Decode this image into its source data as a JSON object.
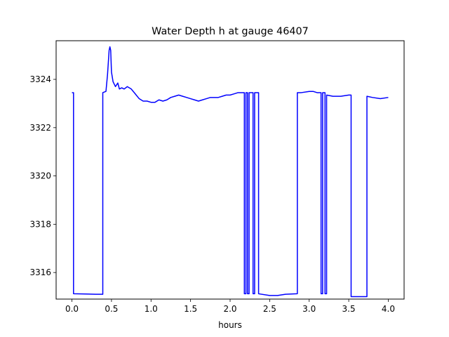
{
  "chart_data": {
    "type": "line",
    "title": "Water Depth h at gauge 46407",
    "xlabel": "hours",
    "ylabel": "",
    "xlim": [
      -0.2,
      4.2
    ],
    "ylim": [
      3314.9,
      3325.6
    ],
    "xticks": [
      0.0,
      0.5,
      1.0,
      1.5,
      2.0,
      2.5,
      3.0,
      3.5,
      4.0
    ],
    "xtick_labels": [
      "0.0",
      "0.5",
      "1.0",
      "1.5",
      "2.0",
      "2.5",
      "3.0",
      "3.5",
      "4.0"
    ],
    "yticks": [
      3316,
      3318,
      3320,
      3322,
      3324
    ],
    "ytick_labels": [
      "3316",
      "3318",
      "3320",
      "3322",
      "3324"
    ],
    "grid": false,
    "series": [
      {
        "color": "#0000ff",
        "x": [
          0.0,
          0.02,
          0.02,
          0.3,
          0.39,
          0.39,
          0.43,
          0.45,
          0.47,
          0.48,
          0.49,
          0.5,
          0.52,
          0.55,
          0.58,
          0.6,
          0.63,
          0.66,
          0.7,
          0.75,
          0.8,
          0.85,
          0.9,
          0.95,
          1.0,
          1.05,
          1.1,
          1.15,
          1.2,
          1.25,
          1.3,
          1.35,
          1.4,
          1.45,
          1.5,
          1.55,
          1.6,
          1.65,
          1.7,
          1.75,
          1.8,
          1.85,
          1.9,
          1.95,
          2.0,
          2.05,
          2.1,
          2.15,
          2.18,
          2.18,
          2.2,
          2.2,
          2.22,
          2.22,
          2.24,
          2.24,
          2.29,
          2.29,
          2.31,
          2.31,
          2.36,
          2.36,
          2.5,
          2.6,
          2.7,
          2.85,
          2.85,
          2.9,
          3.0,
          3.05,
          3.1,
          3.15,
          3.15,
          3.17,
          3.17,
          3.2,
          3.2,
          3.22,
          3.22,
          3.3,
          3.4,
          3.5,
          3.53,
          3.53,
          3.6,
          3.73,
          3.73,
          3.8,
          3.9,
          4.0
        ],
        "y": [
          3323.45,
          3323.45,
          3315.12,
          3315.1,
          3315.1,
          3323.45,
          3323.5,
          3324.2,
          3325.2,
          3325.35,
          3325.2,
          3324.3,
          3323.9,
          3323.7,
          3323.85,
          3323.6,
          3323.65,
          3323.6,
          3323.7,
          3323.6,
          3323.4,
          3323.2,
          3323.1,
          3323.1,
          3323.05,
          3323.05,
          3323.15,
          3323.1,
          3323.15,
          3323.25,
          3323.3,
          3323.35,
          3323.3,
          3323.25,
          3323.2,
          3323.15,
          3323.1,
          3323.15,
          3323.2,
          3323.25,
          3323.25,
          3323.25,
          3323.3,
          3323.35,
          3323.35,
          3323.4,
          3323.45,
          3323.45,
          3323.45,
          3315.12,
          3315.12,
          3323.45,
          3323.45,
          3315.12,
          3315.12,
          3323.45,
          3323.45,
          3315.12,
          3315.12,
          3323.45,
          3323.45,
          3315.12,
          3315.05,
          3315.05,
          3315.1,
          3315.12,
          3323.45,
          3323.45,
          3323.5,
          3323.5,
          3323.45,
          3323.45,
          3315.12,
          3315.12,
          3323.45,
          3323.45,
          3315.12,
          3315.12,
          3323.35,
          3323.3,
          3323.3,
          3323.35,
          3323.35,
          3315.0,
          3315.0,
          3315.0,
          3323.3,
          3323.25,
          3323.2,
          3323.25
        ]
      }
    ]
  }
}
